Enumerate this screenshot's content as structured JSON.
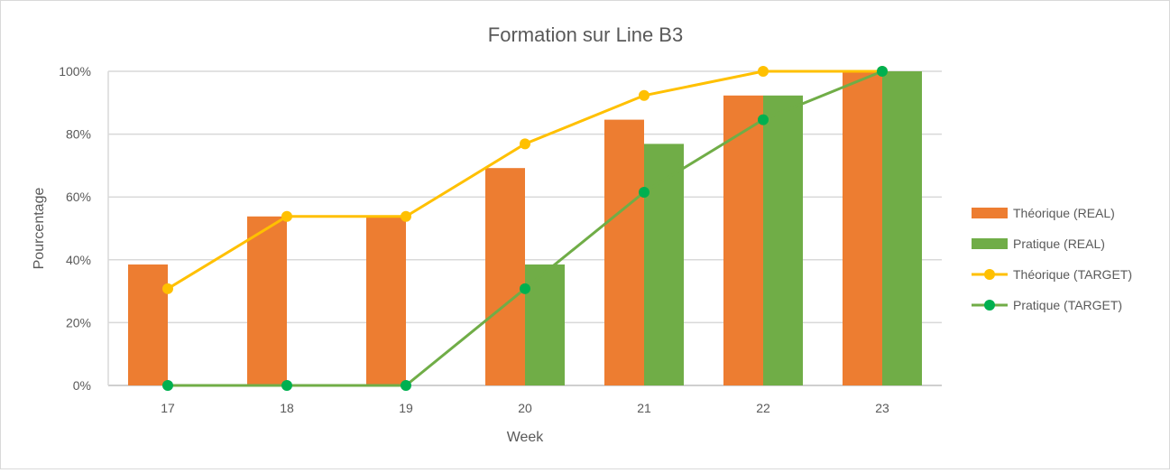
{
  "chart_data": {
    "type": "bar",
    "title": "Formation sur Line B3",
    "xlabel": "Week",
    "ylabel": "Pourcentage",
    "ylim": [
      0,
      100
    ],
    "y_ticks": [
      "0%",
      "20%",
      "40%",
      "60%",
      "80%",
      "100%"
    ],
    "categories": [
      "17",
      "18",
      "19",
      "20",
      "21",
      "22",
      "23"
    ],
    "grid": true,
    "legend_position": "right",
    "series": [
      {
        "name": "Théorique (REAL)",
        "kind": "bar",
        "color": "#ED7D31",
        "values": [
          38.5,
          53.8,
          53.8,
          69.2,
          84.6,
          92.3,
          100
        ]
      },
      {
        "name": "Pratique (REAL)",
        "kind": "bar",
        "color": "#70AD47",
        "values": [
          0,
          0,
          0,
          38.5,
          76.9,
          92.3,
          100
        ]
      },
      {
        "name": "Théorique (TARGET)",
        "kind": "line",
        "color": "#FFC000",
        "marker_color": "#FFC000",
        "values": [
          30.8,
          53.8,
          53.8,
          76.9,
          92.3,
          100,
          100
        ]
      },
      {
        "name": "Pratique (TARGET)",
        "kind": "line",
        "color": "#70AD47",
        "marker_color": "#00B050",
        "values": [
          0,
          0,
          0,
          30.8,
          61.5,
          84.6,
          100
        ]
      }
    ]
  }
}
